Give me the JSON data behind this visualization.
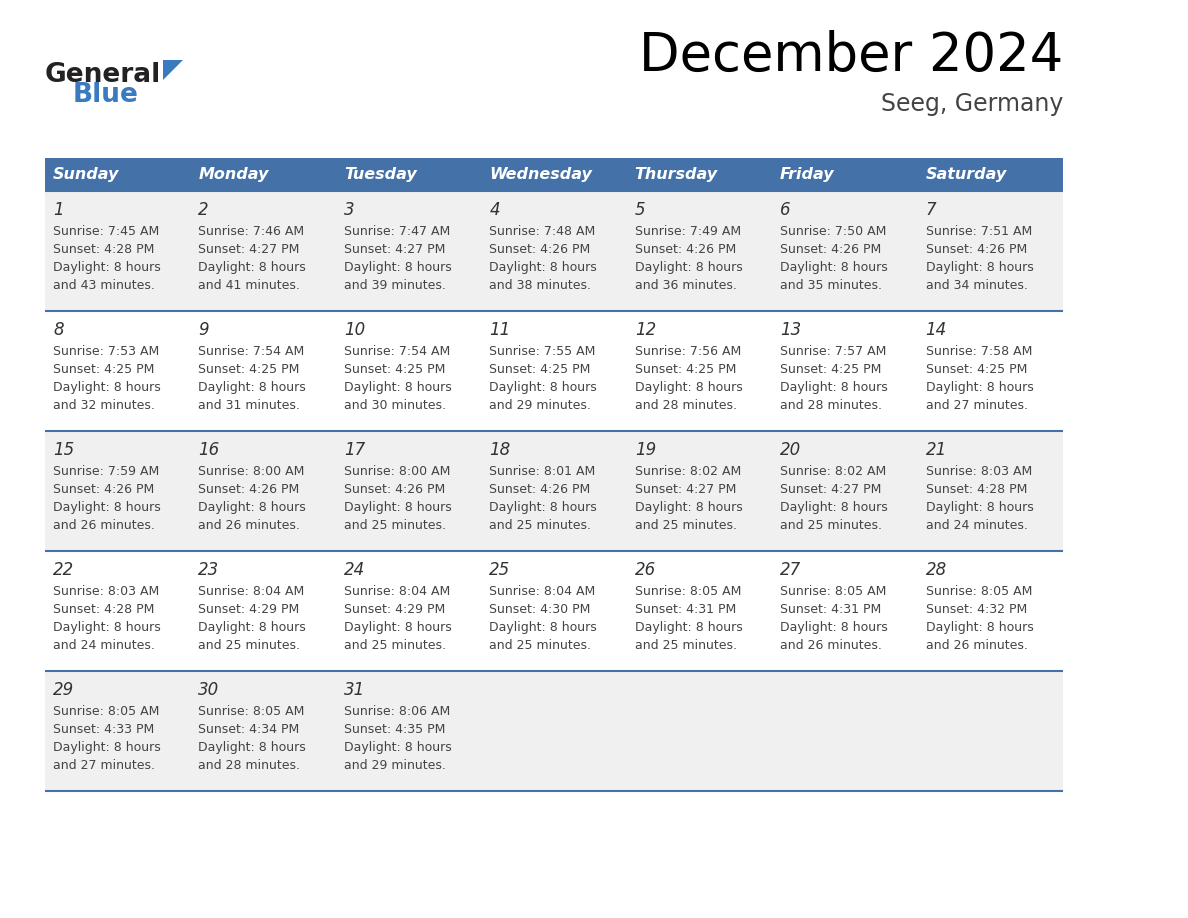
{
  "title": "December 2024",
  "subtitle": "Seeg, Germany",
  "days_of_week": [
    "Sunday",
    "Monday",
    "Tuesday",
    "Wednesday",
    "Thursday",
    "Friday",
    "Saturday"
  ],
  "header_bg": "#4472a8",
  "header_text": "#ffffff",
  "row_bg_odd": "#f0f0f0",
  "row_bg_even": "#ffffff",
  "cell_border": "#4472a8",
  "day_number_color": "#333333",
  "text_color": "#444444",
  "logo_general_color": "#222222",
  "logo_blue_color": "#3a7abf",
  "calendar_data": [
    [
      {
        "day": 1,
        "sunrise": "7:45 AM",
        "sunset": "4:28 PM",
        "daylight": "8 hours and 43 minutes."
      },
      {
        "day": 2,
        "sunrise": "7:46 AM",
        "sunset": "4:27 PM",
        "daylight": "8 hours and 41 minutes."
      },
      {
        "day": 3,
        "sunrise": "7:47 AM",
        "sunset": "4:27 PM",
        "daylight": "8 hours and 39 minutes."
      },
      {
        "day": 4,
        "sunrise": "7:48 AM",
        "sunset": "4:26 PM",
        "daylight": "8 hours and 38 minutes."
      },
      {
        "day": 5,
        "sunrise": "7:49 AM",
        "sunset": "4:26 PM",
        "daylight": "8 hours and 36 minutes."
      },
      {
        "day": 6,
        "sunrise": "7:50 AM",
        "sunset": "4:26 PM",
        "daylight": "8 hours and 35 minutes."
      },
      {
        "day": 7,
        "sunrise": "7:51 AM",
        "sunset": "4:26 PM",
        "daylight": "8 hours and 34 minutes."
      }
    ],
    [
      {
        "day": 8,
        "sunrise": "7:53 AM",
        "sunset": "4:25 PM",
        "daylight": "8 hours and 32 minutes."
      },
      {
        "day": 9,
        "sunrise": "7:54 AM",
        "sunset": "4:25 PM",
        "daylight": "8 hours and 31 minutes."
      },
      {
        "day": 10,
        "sunrise": "7:54 AM",
        "sunset": "4:25 PM",
        "daylight": "8 hours and 30 minutes."
      },
      {
        "day": 11,
        "sunrise": "7:55 AM",
        "sunset": "4:25 PM",
        "daylight": "8 hours and 29 minutes."
      },
      {
        "day": 12,
        "sunrise": "7:56 AM",
        "sunset": "4:25 PM",
        "daylight": "8 hours and 28 minutes."
      },
      {
        "day": 13,
        "sunrise": "7:57 AM",
        "sunset": "4:25 PM",
        "daylight": "8 hours and 28 minutes."
      },
      {
        "day": 14,
        "sunrise": "7:58 AM",
        "sunset": "4:25 PM",
        "daylight": "8 hours and 27 minutes."
      }
    ],
    [
      {
        "day": 15,
        "sunrise": "7:59 AM",
        "sunset": "4:26 PM",
        "daylight": "8 hours and 26 minutes."
      },
      {
        "day": 16,
        "sunrise": "8:00 AM",
        "sunset": "4:26 PM",
        "daylight": "8 hours and 26 minutes."
      },
      {
        "day": 17,
        "sunrise": "8:00 AM",
        "sunset": "4:26 PM",
        "daylight": "8 hours and 25 minutes."
      },
      {
        "day": 18,
        "sunrise": "8:01 AM",
        "sunset": "4:26 PM",
        "daylight": "8 hours and 25 minutes."
      },
      {
        "day": 19,
        "sunrise": "8:02 AM",
        "sunset": "4:27 PM",
        "daylight": "8 hours and 25 minutes."
      },
      {
        "day": 20,
        "sunrise": "8:02 AM",
        "sunset": "4:27 PM",
        "daylight": "8 hours and 25 minutes."
      },
      {
        "day": 21,
        "sunrise": "8:03 AM",
        "sunset": "4:28 PM",
        "daylight": "8 hours and 24 minutes."
      }
    ],
    [
      {
        "day": 22,
        "sunrise": "8:03 AM",
        "sunset": "4:28 PM",
        "daylight": "8 hours and 24 minutes."
      },
      {
        "day": 23,
        "sunrise": "8:04 AM",
        "sunset": "4:29 PM",
        "daylight": "8 hours and 25 minutes."
      },
      {
        "day": 24,
        "sunrise": "8:04 AM",
        "sunset": "4:29 PM",
        "daylight": "8 hours and 25 minutes."
      },
      {
        "day": 25,
        "sunrise": "8:04 AM",
        "sunset": "4:30 PM",
        "daylight": "8 hours and 25 minutes."
      },
      {
        "day": 26,
        "sunrise": "8:05 AM",
        "sunset": "4:31 PM",
        "daylight": "8 hours and 25 minutes."
      },
      {
        "day": 27,
        "sunrise": "8:05 AM",
        "sunset": "4:31 PM",
        "daylight": "8 hours and 26 minutes."
      },
      {
        "day": 28,
        "sunrise": "8:05 AM",
        "sunset": "4:32 PM",
        "daylight": "8 hours and 26 minutes."
      }
    ],
    [
      {
        "day": 29,
        "sunrise": "8:05 AM",
        "sunset": "4:33 PM",
        "daylight": "8 hours and 27 minutes."
      },
      {
        "day": 30,
        "sunrise": "8:05 AM",
        "sunset": "4:34 PM",
        "daylight": "8 hours and 28 minutes."
      },
      {
        "day": 31,
        "sunrise": "8:06 AM",
        "sunset": "4:35 PM",
        "daylight": "8 hours and 29 minutes."
      },
      null,
      null,
      null,
      null
    ]
  ],
  "fig_width": 11.88,
  "fig_height": 9.18,
  "dpi": 100
}
